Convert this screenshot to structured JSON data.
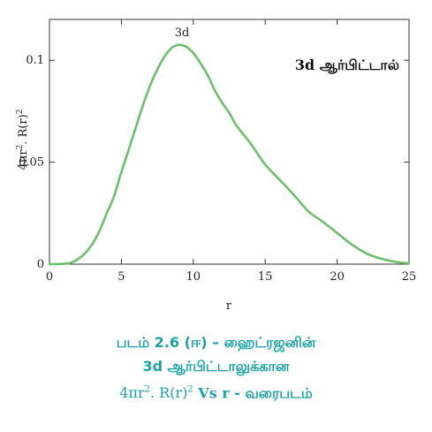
{
  "chart_data": {
    "type": "line",
    "title": "3d ஆர்பிட்டால்",
    "peak_label": "3d",
    "xlabel": "r",
    "ylabel_html": "4πr². R(r)²",
    "xlim": [
      0,
      25
    ],
    "ylim": [
      0,
      0.12
    ],
    "x_ticks": [
      0,
      5,
      10,
      15,
      20,
      25
    ],
    "y_ticks": [
      0,
      0.05,
      0.1
    ],
    "y_tick_labels": [
      "0",
      "0.05",
      "0.1"
    ],
    "grid": false,
    "series": [
      {
        "color": "#6cbf6a",
        "x": [
          0,
          1,
          1.5,
          2,
          2.5,
          3,
          3.5,
          4,
          4.5,
          5,
          5.5,
          6,
          6.5,
          7,
          7.5,
          8,
          8.5,
          9,
          9.5,
          10,
          10.5,
          11,
          11.5,
          12,
          12.5,
          13,
          14,
          15,
          16,
          17,
          18,
          19,
          20,
          21,
          22,
          23,
          24,
          25
        ],
        "y": [
          0,
          0.0002,
          0.0007,
          0.0025,
          0.0055,
          0.0101,
          0.0167,
          0.0253,
          0.0335,
          0.0452,
          0.0559,
          0.067,
          0.0779,
          0.0877,
          0.0955,
          0.1018,
          0.1061,
          0.1075,
          0.1066,
          0.1035,
          0.0985,
          0.0927,
          0.0852,
          0.0792,
          0.0742,
          0.068,
          0.059,
          0.0488,
          0.0414,
          0.0339,
          0.0259,
          0.0208,
          0.0153,
          0.0097,
          0.0054,
          0.0028,
          0.0012,
          0.0004
        ]
      }
    ]
  },
  "caption": {
    "line1": "படம் 2.6 (ஈ) – ஹைட்ரஜனின்",
    "line2": "3d ஆர்பிட்டாலுக்கான",
    "line3_formula": "4πr². R(r)²",
    "line3_vs": "Vs r",
    "line3_rest": "- வரைபடம்"
  }
}
